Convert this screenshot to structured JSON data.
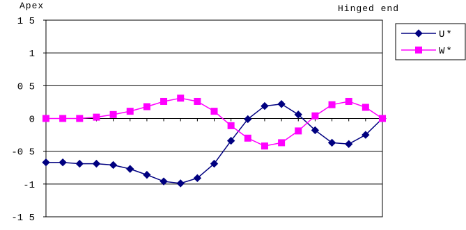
{
  "chart_data": {
    "type": "line",
    "title": "",
    "left_label": "Apex",
    "right_label": "Hinged end",
    "xlabel": "",
    "ylabel": "",
    "ylim": [
      -1.5,
      1.5
    ],
    "yticks": [
      1.5,
      1,
      0.5,
      0,
      -0.5,
      -1,
      -1.5
    ],
    "ytick_labels": [
      "1 5",
      "1",
      "0 5",
      "0",
      "-0 5",
      "-1",
      "-1 5"
    ],
    "grid": true,
    "legend_position": "right",
    "n_points": 21,
    "series": [
      {
        "name": "U*",
        "color": "#000080",
        "marker": "diamond",
        "values": [
          -0.67,
          -0.67,
          -0.69,
          -0.69,
          -0.71,
          -0.77,
          -0.86,
          -0.96,
          -0.99,
          -0.91,
          -0.69,
          -0.34,
          -0.01,
          0.19,
          0.22,
          0.06,
          -0.18,
          -0.37,
          -0.39,
          -0.25,
          0.0
        ]
      },
      {
        "name": "W*",
        "color": "#ff00ff",
        "marker": "square",
        "values": [
          0.0,
          0.0,
          0.0,
          0.02,
          0.06,
          0.11,
          0.18,
          0.26,
          0.31,
          0.26,
          0.11,
          -0.11,
          -0.3,
          -0.42,
          -0.37,
          -0.19,
          0.04,
          0.21,
          0.26,
          0.17,
          0.0
        ]
      }
    ]
  }
}
